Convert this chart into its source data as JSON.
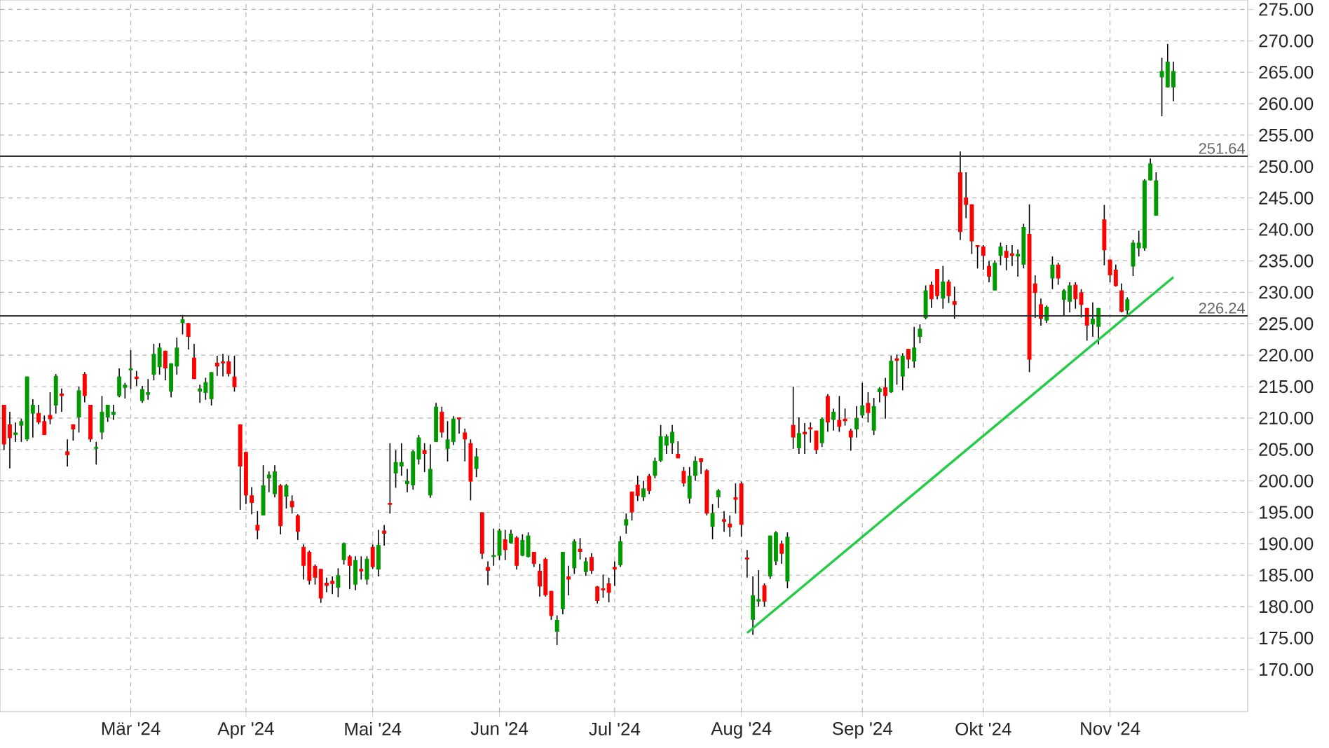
{
  "chart_data": {
    "type": "candlestick",
    "categories": [
      null,
      null,
      null,
      null,
      null,
      null,
      null,
      null,
      null,
      null,
      null,
      null,
      null,
      null,
      null,
      null,
      null,
      null,
      null,
      null,
      null,
      null,
      "Mär '24",
      null,
      null,
      null,
      null,
      null,
      null,
      null,
      null,
      null,
      null,
      null,
      null,
      null,
      null,
      null,
      null,
      null,
      null,
      null,
      "Apr '24",
      null,
      null,
      null,
      null,
      null,
      null,
      null,
      null,
      null,
      null,
      null,
      null,
      null,
      null,
      null,
      null,
      null,
      null,
      null,
      null,
      null,
      "Mai '24",
      null,
      null,
      null,
      null,
      null,
      null,
      null,
      null,
      null,
      null,
      null,
      null,
      null,
      null,
      null,
      null,
      null,
      null,
      null,
      null,
      null,
      "Jun '24",
      null,
      null,
      null,
      null,
      null,
      null,
      null,
      null,
      null,
      null,
      null,
      null,
      null,
      null,
      null,
      null,
      null,
      null,
      null,
      "Jul '24",
      null,
      null,
      null,
      null,
      null,
      null,
      null,
      null,
      null,
      null,
      null,
      null,
      null,
      null,
      null,
      null,
      null,
      null,
      null,
      null,
      null,
      "Aug '24",
      null,
      null,
      null,
      null,
      null,
      null,
      null,
      null,
      null,
      null,
      null,
      null,
      null,
      null,
      null,
      null,
      null,
      null,
      null,
      null,
      "Sep '24",
      null,
      null,
      null,
      null,
      null,
      null,
      null,
      null,
      null,
      null,
      null,
      null,
      null,
      null,
      null,
      null,
      null,
      null,
      null,
      null,
      "Okt '24",
      null,
      null,
      null,
      null,
      null,
      null,
      null,
      null,
      null,
      null,
      null,
      null,
      null,
      null,
      null,
      null,
      null,
      null,
      null,
      null,
      null,
      "Nov '24",
      null,
      null,
      null,
      null,
      null,
      null,
      null,
      null,
      null,
      null,
      null
    ],
    "ohlc": [
      [
        212.1,
        212.1,
        204.9,
        205.8
      ],
      [
        209.0,
        211.0,
        202.0,
        206.8
      ],
      [
        207.3,
        209.3,
        206.2,
        207.7
      ],
      [
        208.8,
        209.9,
        206.2,
        209.5
      ],
      [
        206.6,
        216.6,
        206.3,
        216.6
      ],
      [
        210.7,
        213.0,
        206.9,
        212.1
      ],
      [
        210.8,
        212.1,
        209.0,
        209.3
      ],
      [
        209.5,
        210.4,
        207.3,
        207.3
      ],
      [
        210.5,
        214.1,
        209.0,
        209.8
      ],
      [
        212.0,
        217.0,
        210.7,
        216.7
      ],
      [
        213.9,
        214.7,
        211.0,
        213.5
      ],
      [
        204.7,
        206.6,
        202.3,
        204.1
      ],
      [
        209.0,
        209.0,
        206.4,
        208.2
      ],
      [
        210.1,
        215.0,
        207.7,
        214.4
      ],
      [
        217.0,
        217.3,
        212.5,
        213.5
      ],
      [
        212.1,
        212.1,
        206.2,
        206.6
      ],
      [
        205.1,
        206.2,
        202.6,
        205.4
      ],
      [
        207.7,
        213.5,
        206.6,
        211.0
      ],
      [
        210.1,
        212.1,
        209.4,
        212.1
      ],
      [
        210.5,
        212.1,
        209.7,
        211.0
      ],
      [
        213.5,
        217.9,
        213.3,
        216.6
      ],
      [
        214.8,
        215.6,
        213.1,
        215.3
      ],
      [
        217.6,
        220.8,
        214.6,
        217.9
      ],
      [
        216.6,
        217.5,
        215.1,
        216.2
      ],
      [
        212.7,
        215.1,
        212.4,
        214.6
      ],
      [
        213.7,
        216.2,
        212.9,
        214.1
      ],
      [
        216.9,
        221.8,
        216.0,
        220.2
      ],
      [
        218.1,
        221.9,
        216.9,
        221.2
      ],
      [
        220.7,
        220.7,
        216.0,
        217.9
      ],
      [
        214.2,
        218.7,
        213.3,
        218.7
      ],
      [
        218.2,
        222.8,
        216.9,
        221.2
      ],
      [
        225.1,
        226.4,
        223.3,
        225.7
      ],
      [
        225.1,
        225.1,
        220.9,
        222.9
      ],
      [
        219.6,
        221.8,
        216.2,
        216.2
      ],
      [
        214.2,
        215.3,
        212.4,
        214.7
      ],
      [
        214.0,
        216.4,
        212.9,
        215.7
      ],
      [
        213.0,
        217.3,
        212.0,
        217.3
      ],
      [
        218.8,
        219.9,
        216.7,
        218.2
      ],
      [
        219.0,
        220.2,
        216.6,
        218.7
      ],
      [
        219.0,
        219.9,
        216.6,
        217.0
      ],
      [
        216.6,
        219.9,
        214.2,
        214.9
      ],
      [
        209.0,
        209.0,
        195.4,
        202.3
      ],
      [
        204.6,
        204.6,
        196.3,
        197.7
      ],
      [
        197.7,
        199.0,
        194.7,
        196.5
      ],
      [
        193.0,
        195.2,
        190.7,
        192.1
      ],
      [
        194.5,
        202.5,
        194.5,
        199.3
      ],
      [
        200.4,
        201.5,
        198.2,
        201.0
      ],
      [
        197.9,
        202.5,
        197.4,
        201.5
      ],
      [
        199.3,
        199.5,
        191.5,
        192.8
      ],
      [
        197.5,
        199.5,
        195.6,
        199.3
      ],
      [
        196.8,
        197.7,
        194.8,
        195.8
      ],
      [
        194.5,
        194.7,
        190.6,
        191.9
      ],
      [
        189.5,
        189.9,
        184.3,
        186.5
      ],
      [
        188.7,
        188.9,
        183.5,
        184.1
      ],
      [
        186.5,
        186.7,
        183.5,
        184.6
      ],
      [
        186.0,
        186.0,
        180.6,
        181.3
      ],
      [
        183.8,
        184.6,
        182.3,
        183.3
      ],
      [
        184.1,
        184.8,
        182.0,
        183.6
      ],
      [
        183.0,
        186.1,
        181.5,
        185.0
      ],
      [
        187.4,
        190.2,
        186.7,
        190.1
      ],
      [
        188.0,
        188.2,
        182.8,
        186.5
      ],
      [
        183.5,
        188.0,
        182.6,
        187.4
      ],
      [
        186.0,
        188.0,
        184.3,
        185.6
      ],
      [
        184.3,
        188.0,
        183.5,
        187.6
      ],
      [
        189.5,
        189.9,
        186.0,
        186.3
      ],
      [
        185.9,
        192.2,
        184.8,
        189.8
      ],
      [
        192.1,
        193.0,
        189.7,
        191.6
      ],
      [
        196.5,
        206.0,
        194.8,
        196.2
      ],
      [
        201.2,
        204.9,
        198.9,
        203.0
      ],
      [
        202.3,
        206.0,
        200.8,
        203.0
      ],
      [
        199.5,
        201.9,
        198.2,
        200.0
      ],
      [
        199.3,
        204.9,
        198.6,
        204.7
      ],
      [
        203.4,
        207.3,
        202.6,
        206.9
      ],
      [
        204.9,
        206.0,
        201.4,
        204.3
      ],
      [
        197.7,
        205.8,
        197.3,
        201.9
      ],
      [
        206.2,
        212.4,
        206.2,
        211.8
      ],
      [
        211.0,
        211.8,
        206.9,
        207.7
      ],
      [
        205.1,
        209.5,
        203.1,
        206.6
      ],
      [
        206.2,
        210.3,
        205.7,
        209.9
      ],
      [
        210.1,
        210.1,
        207.5,
        209.8
      ],
      [
        207.7,
        208.3,
        203.1,
        206.6
      ],
      [
        206.0,
        206.6,
        196.9,
        199.9
      ],
      [
        201.9,
        205.2,
        200.6,
        203.9
      ],
      [
        195.0,
        195.0,
        187.6,
        188.4
      ],
      [
        186.3,
        187.2,
        183.4,
        185.7
      ],
      [
        187.9,
        192.4,
        186.5,
        188.2
      ],
      [
        188.1,
        192.4,
        187.4,
        192.1
      ],
      [
        190.7,
        192.2,
        187.4,
        189.0
      ],
      [
        190.1,
        192.2,
        190.0,
        191.6
      ],
      [
        191.0,
        191.2,
        185.9,
        186.5
      ],
      [
        188.1,
        191.5,
        188.0,
        190.6
      ],
      [
        187.9,
        191.8,
        187.8,
        191.3
      ],
      [
        188.7,
        188.7,
        186.3,
        186.8
      ],
      [
        185.7,
        186.8,
        181.6,
        183.2
      ],
      [
        187.6,
        187.8,
        181.6,
        181.8
      ],
      [
        182.5,
        182.5,
        177.9,
        178.5
      ],
      [
        176.0,
        178.6,
        173.9,
        177.9
      ],
      [
        179.6,
        188.7,
        178.8,
        188.7
      ],
      [
        184.8,
        186.5,
        181.8,
        184.3
      ],
      [
        186.1,
        190.7,
        185.2,
        190.4
      ],
      [
        189.2,
        190.9,
        187.5,
        188.7
      ],
      [
        185.5,
        187.8,
        184.9,
        187.2
      ],
      [
        187.9,
        188.5,
        185.2,
        185.7
      ],
      [
        183.2,
        183.3,
        180.5,
        180.9
      ],
      [
        182.9,
        185.1,
        181.4,
        182.6
      ],
      [
        183.7,
        184.6,
        180.7,
        182.2
      ],
      [
        186.3,
        187.2,
        183.3,
        185.9
      ],
      [
        186.6,
        191.2,
        186.3,
        190.4
      ],
      [
        192.9,
        194.8,
        191.6,
        193.9
      ],
      [
        198.3,
        198.3,
        193.7,
        195.0
      ],
      [
        199.4,
        200.8,
        196.8,
        197.6
      ],
      [
        197.4,
        200.0,
        196.8,
        198.8
      ],
      [
        200.8,
        201.1,
        197.9,
        198.4
      ],
      [
        200.8,
        203.7,
        200.4,
        203.2
      ],
      [
        203.2,
        208.9,
        203.0,
        207.1
      ],
      [
        205.6,
        207.4,
        204.3,
        207.1
      ],
      [
        206.0,
        208.9,
        204.3,
        207.8
      ],
      [
        204.3,
        206.3,
        203.6,
        203.6
      ],
      [
        201.6,
        202.2,
        199.1,
        199.6
      ],
      [
        197.2,
        202.2,
        196.4,
        200.8
      ],
      [
        200.8,
        203.9,
        200.0,
        203.2
      ],
      [
        203.6,
        203.6,
        201.1,
        203.0
      ],
      [
        201.7,
        201.9,
        194.5,
        194.8
      ],
      [
        192.7,
        196.3,
        190.7,
        194.9
      ],
      [
        197.4,
        198.7,
        195.7,
        198.5
      ],
      [
        193.9,
        195.2,
        191.9,
        193.5
      ],
      [
        193.2,
        194.5,
        191.1,
        192.6
      ],
      [
        197.4,
        199.6,
        194.8,
        197.0
      ],
      [
        199.6,
        199.9,
        191.1,
        193.0
      ],
      [
        187.8,
        189.0,
        184.6,
        187.5
      ],
      [
        177.9,
        184.8,
        175.5,
        181.8
      ],
      [
        180.8,
        185.8,
        180.0,
        181.2
      ],
      [
        183.4,
        183.7,
        180.0,
        180.8
      ],
      [
        184.8,
        191.3,
        184.4,
        191.3
      ],
      [
        187.2,
        192.0,
        186.6,
        191.8
      ],
      [
        190.0,
        190.5,
        186.8,
        188.4
      ],
      [
        184.0,
        191.8,
        182.9,
        191.1
      ],
      [
        208.9,
        215.0,
        205.1,
        206.9
      ],
      [
        205.2,
        210.1,
        204.3,
        207.6
      ],
      [
        207.8,
        209.2,
        204.3,
        207.4
      ],
      [
        208.5,
        209.3,
        206.1,
        208.2
      ],
      [
        208.0,
        208.0,
        204.3,
        204.9
      ],
      [
        206.0,
        210.1,
        205.4,
        209.9
      ],
      [
        213.5,
        213.8,
        207.8,
        209.3
      ],
      [
        209.7,
        211.5,
        208.0,
        211.0
      ],
      [
        209.7,
        213.5,
        207.8,
        208.6
      ],
      [
        209.9,
        211.5,
        208.8,
        209.5
      ],
      [
        208.0,
        208.3,
        204.8,
        206.9
      ],
      [
        208.2,
        211.9,
        206.9,
        210.0
      ],
      [
        210.4,
        215.6,
        210.0,
        212.0
      ],
      [
        212.4,
        214.1,
        209.3,
        210.8
      ],
      [
        208.0,
        213.2,
        207.3,
        211.9
      ],
      [
        214.1,
        214.9,
        212.5,
        214.7
      ],
      [
        214.9,
        216.4,
        209.9,
        213.5
      ],
      [
        214.1,
        219.9,
        214.0,
        219.1
      ],
      [
        219.5,
        220.1,
        215.3,
        219.1
      ],
      [
        216.6,
        220.3,
        214.4,
        219.9
      ],
      [
        221.0,
        221.0,
        217.9,
        219.3
      ],
      [
        219.0,
        224.5,
        218.0,
        221.2
      ],
      [
        222.9,
        224.9,
        221.9,
        224.2
      ],
      [
        225.9,
        231.1,
        225.7,
        230.3
      ],
      [
        231.2,
        231.7,
        227.5,
        228.9
      ],
      [
        233.7,
        233.7,
        228.9,
        229.4
      ],
      [
        229.0,
        234.2,
        227.4,
        231.7
      ],
      [
        231.7,
        232.0,
        228.3,
        229.4
      ],
      [
        228.6,
        230.9,
        225.8,
        228.0
      ],
      [
        249.1,
        252.4,
        238.3,
        239.6
      ],
      [
        245.1,
        249.1,
        241.8,
        243.9
      ],
      [
        244.0,
        244.0,
        236.1,
        238.1
      ],
      [
        237.5,
        237.5,
        233.8,
        237.2
      ],
      [
        237.3,
        237.5,
        233.6,
        235.8
      ],
      [
        234.2,
        235.0,
        231.6,
        232.5
      ],
      [
        230.3,
        235.1,
        230.3,
        234.7
      ],
      [
        235.8,
        237.9,
        234.3,
        237.3
      ],
      [
        236.6,
        237.5,
        233.5,
        235.5
      ],
      [
        236.2,
        237.5,
        234.2,
        235.8
      ],
      [
        235.7,
        236.8,
        232.5,
        236.1
      ],
      [
        234.4,
        240.9,
        233.8,
        240.4
      ],
      [
        239.3,
        244.0,
        217.3,
        219.3
      ],
      [
        231.4,
        232.7,
        225.9,
        229.9
      ],
      [
        228.1,
        229.0,
        224.7,
        225.8
      ],
      [
        225.5,
        227.9,
        225.1,
        227.7
      ],
      [
        232.2,
        235.7,
        230.5,
        234.4
      ],
      [
        234.4,
        234.7,
        231.2,
        232.2
      ],
      [
        228.8,
        230.5,
        226.2,
        230.3
      ],
      [
        228.5,
        231.6,
        226.8,
        231.1
      ],
      [
        231.2,
        231.6,
        227.4,
        228.9
      ],
      [
        230.0,
        230.5,
        226.0,
        228.0
      ],
      [
        227.5,
        227.5,
        222.3,
        224.7
      ],
      [
        224.9,
        228.4,
        222.9,
        225.8
      ],
      [
        224.5,
        227.5,
        221.7,
        227.5
      ],
      [
        241.6,
        243.9,
        234.3,
        236.7
      ],
      [
        235.2,
        235.2,
        231.6,
        232.7
      ],
      [
        233.6,
        234.4,
        230.9,
        231.0
      ],
      [
        230.3,
        231.4,
        226.8,
        226.9
      ],
      [
        227.1,
        229.2,
        226.4,
        228.9
      ],
      [
        234.1,
        238.3,
        232.6,
        237.9
      ],
      [
        237.0,
        239.8,
        235.7,
        237.9
      ],
      [
        237.0,
        248.0,
        236.6,
        247.8
      ],
      [
        247.8,
        251.3,
        247.8,
        250.5
      ],
      [
        242.2,
        249.1,
        242.2,
        247.8
      ],
      [
        264.2,
        267.3,
        258.0,
        265.2
      ],
      [
        262.6,
        269.5,
        262.6,
        266.7
      ],
      [
        262.6,
        266.7,
        260.4,
        265.2
      ]
    ],
    "colors": [
      "#ff0000",
      "#ff0000",
      "#009900",
      "#009900",
      "#009900",
      "#009900",
      "#ff0000",
      "#ff0000",
      "#ff0000",
      "#009900",
      "#ff0000",
      "#ff0000",
      "#ff0000",
      "#009900",
      "#ff0000",
      "#ff0000",
      "#009900",
      "#009900",
      "#009900",
      "#009900",
      "#009900",
      "#009900",
      "#009900",
      "#ff0000",
      "#009900",
      "#009900",
      "#009900",
      "#009900",
      "#ff0000",
      "#009900",
      "#009900",
      "#009900",
      "#ff0000",
      "#ff0000",
      "#009900",
      "#009900",
      "#009900",
      "#ff0000",
      "#ff0000",
      "#ff0000",
      "#ff0000",
      "#ff0000",
      "#ff0000",
      "#ff0000",
      "#ff0000",
      "#009900",
      "#009900",
      "#009900",
      "#ff0000",
      "#009900",
      "#ff0000",
      "#ff0000",
      "#ff0000",
      "#ff0000",
      "#ff0000",
      "#ff0000",
      "#ff0000",
      "#ff0000",
      "#009900",
      "#009900",
      "#ff0000",
      "#009900",
      "#ff0000",
      "#009900",
      "#ff0000",
      "#009900",
      "#ff0000",
      "#ff0000",
      "#009900",
      "#009900",
      "#009900",
      "#009900",
      "#009900",
      "#ff0000",
      "#009900",
      "#009900",
      "#ff0000",
      "#009900",
      "#009900",
      "#ff0000",
      "#ff0000",
      "#ff0000",
      "#009900",
      "#ff0000",
      "#ff0000",
      "#009900",
      "#009900",
      "#ff0000",
      "#009900",
      "#ff0000",
      "#009900",
      "#009900",
      "#ff0000",
      "#ff0000",
      "#ff0000",
      "#ff0000",
      "#009900",
      "#009900",
      "#ff0000",
      "#009900",
      "#ff0000",
      "#009900",
      "#ff0000",
      "#ff0000",
      "#ff0000",
      "#ff0000",
      "#ff0000",
      "#009900",
      "#009900",
      "#ff0000",
      "#ff0000",
      "#009900",
      "#ff0000",
      "#009900",
      "#009900",
      "#009900",
      "#009900",
      "#ff0000",
      "#ff0000",
      "#009900",
      "#009900",
      "#ff0000",
      "#ff0000",
      "#009900",
      "#009900",
      "#ff0000",
      "#ff0000",
      "#ff0000",
      "#ff0000",
      "#ff0000",
      "#009900",
      "#009900",
      "#ff0000",
      "#009900",
      "#009900",
      "#ff0000",
      "#009900",
      "#ff0000",
      "#009900",
      "#ff0000",
      "#ff0000",
      "#ff0000",
      "#009900",
      "#ff0000",
      "#009900",
      "#ff0000",
      "#ff0000",
      "#ff0000",
      "#009900",
      "#009900",
      "#ff0000",
      "#009900",
      "#009900",
      "#ff0000",
      "#009900",
      "#ff0000",
      "#009900",
      "#ff0000",
      "#009900",
      "#009900",
      "#009900",
      "#ff0000",
      "#ff0000",
      "#009900",
      "#ff0000",
      "#ff0000",
      "#ff0000",
      "#ff0000",
      "#ff0000",
      "#ff0000",
      "#ff0000",
      "#ff0000",
      "#009900",
      "#009900",
      "#ff0000",
      "#ff0000",
      "#009900",
      "#009900",
      "#ff0000",
      "#ff0000",
      "#ff0000",
      "#009900",
      "#009900",
      "#ff0000",
      "#009900",
      "#009900",
      "#ff0000",
      "#ff0000",
      "#ff0000",
      "#009900",
      "#009900",
      "#ff0000",
      "#ff0000",
      "#ff0000",
      "#ff0000",
      "#009900",
      "#009900",
      "#009900",
      "#009900",
      "#009900",
      "#009900",
      "#009900",
      "#009900",
      "#009900"
    ],
    "series": [
      {
        "type": "line",
        "color": "#22cc44",
        "values": [
          null,
          null,
          null,
          null,
          null,
          null,
          null,
          null,
          null,
          null,
          null,
          null,
          null,
          null,
          null,
          null,
          null,
          null,
          null,
          null,
          null,
          null,
          null,
          null,
          null,
          null,
          null,
          null,
          null,
          null,
          null,
          null,
          null,
          null,
          null,
          null,
          null,
          null,
          null,
          null,
          null,
          null,
          null,
          null,
          null,
          null,
          null,
          null,
          null,
          null,
          null,
          null,
          null,
          null,
          null,
          null,
          null,
          null,
          null,
          null,
          null,
          null,
          null,
          null,
          null,
          null,
          null,
          null,
          null,
          null,
          null,
          null,
          null,
          null,
          null,
          null,
          null,
          null,
          null,
          null,
          null,
          null,
          null,
          null,
          null,
          null,
          null,
          null,
          null,
          null,
          null,
          null,
          null,
          null,
          null,
          null,
          null,
          null,
          null,
          null,
          null,
          null,
          null,
          null,
          null,
          null,
          null,
          null,
          null,
          null,
          null,
          null,
          null,
          null,
          null,
          null,
          null,
          null,
          null,
          null,
          null,
          null,
          null,
          null,
          null,
          null,
          null,
          null,
          null,
          175.8,
          null,
          null,
          null,
          null,
          null,
          null,
          null,
          null,
          null,
          null,
          null,
          null,
          null,
          null,
          null,
          null,
          null,
          null,
          null,
          null,
          null,
          null,
          null,
          null,
          null,
          null,
          null,
          null,
          null,
          null,
          null,
          null,
          null,
          null,
          null,
          null,
          null,
          null,
          null,
          null,
          null,
          null,
          null,
          null,
          null,
          null,
          null,
          null,
          null,
          null,
          null,
          null,
          null,
          null,
          null,
          null,
          null,
          null,
          null,
          null,
          null,
          null,
          null,
          null,
          null,
          null,
          null,
          null,
          null,
          null,
          null,
          null,
          null,
          232.4
        ]
      }
    ],
    "ref_lines": [
      {
        "axis": "y",
        "value": 251.64,
        "label": "251.64",
        "color": "#333333"
      },
      {
        "axis": "y",
        "value": 226.24,
        "label": "226.24",
        "color": "#333333"
      }
    ],
    "ylim": [
      163.3,
      276.5
    ],
    "yticks": [
      {
        "value": 170,
        "label": "170.00"
      },
      {
        "value": 175,
        "label": "175.00"
      },
      {
        "value": 180,
        "label": "180.00"
      },
      {
        "value": 185,
        "label": "185.00"
      },
      {
        "value": 190,
        "label": "190.00"
      },
      {
        "value": 195,
        "label": "195.00"
      },
      {
        "value": 200,
        "label": "200.00"
      },
      {
        "value": 205,
        "label": "205.00"
      },
      {
        "value": 210,
        "label": "210.00"
      },
      {
        "value": 215,
        "label": "215.00"
      },
      {
        "value": 220,
        "label": "220.00"
      },
      {
        "value": 225,
        "label": "225.00"
      },
      {
        "value": 230,
        "label": "230.00"
      },
      {
        "value": 235,
        "label": "235.00"
      },
      {
        "value": 240,
        "label": "240.00"
      },
      {
        "value": 245,
        "label": "245.00"
      },
      {
        "value": 250,
        "label": "250.00"
      },
      {
        "value": 255,
        "label": "255.00"
      },
      {
        "value": 260,
        "label": "260.00"
      },
      {
        "value": 265,
        "label": "265.00"
      },
      {
        "value": 270,
        "label": "270.00"
      },
      {
        "value": 275,
        "label": "275.00"
      }
    ],
    "grid": true
  }
}
